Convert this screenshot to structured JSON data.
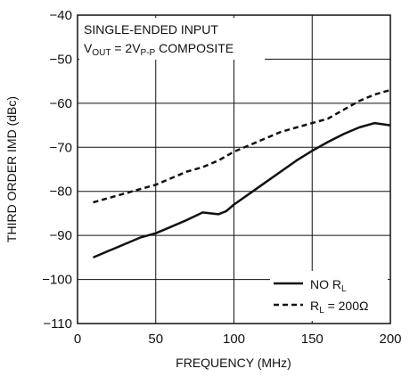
{
  "chart_data": {
    "type": "line",
    "title": "",
    "xlabel": "FREQUENCY (MHz)",
    "ylabel": "THIRD ORDER IMD (dBc)",
    "xlim": [
      0,
      200
    ],
    "ylim": [
      -110,
      -40
    ],
    "x_ticks": [
      "0",
      "50",
      "100",
      "150",
      "200"
    ],
    "y_ticks": [
      "−40",
      "−50",
      "−60",
      "−70",
      "−80",
      "−90",
      "−100",
      "−110"
    ],
    "grid": true,
    "legend_position": "bottom-right",
    "annotation": {
      "line1": "SINGLE-ENDED INPUT",
      "line2_main": "V",
      "line2_sub1": "OUT",
      "line2_mid": " = 2V",
      "line2_sub2": "P-P",
      "line2_end": " COMPOSITE"
    },
    "series": [
      {
        "name": "NO R",
        "name_sub": "L",
        "name_suffix": "",
        "style": "solid",
        "x": [
          10,
          20,
          30,
          40,
          50,
          60,
          70,
          80,
          85,
          90,
          95,
          100,
          110,
          120,
          130,
          140,
          150,
          160,
          170,
          180,
          190,
          200
        ],
        "y": [
          -95,
          -93.5,
          -92,
          -90.5,
          -89.5,
          -88,
          -86.5,
          -84.8,
          -85,
          -85.2,
          -84.5,
          -83,
          -80.5,
          -78,
          -75.5,
          -73,
          -70.8,
          -68.8,
          -67,
          -65.5,
          -64.5,
          -65
        ]
      },
      {
        "name": "R",
        "name_sub": "L",
        "name_suffix": " = 200Ω",
        "style": "dashed",
        "x": [
          10,
          20,
          30,
          40,
          50,
          60,
          70,
          80,
          90,
          100,
          110,
          120,
          130,
          140,
          150,
          160,
          170,
          180,
          190,
          200
        ],
        "y": [
          -82.5,
          -81.5,
          -80.5,
          -79.5,
          -78.5,
          -77,
          -75.5,
          -74.5,
          -73,
          -71,
          -69.5,
          -68,
          -66.5,
          -65.5,
          -64.5,
          -63.5,
          -61.5,
          -59.5,
          -58,
          -57
        ]
      }
    ]
  }
}
